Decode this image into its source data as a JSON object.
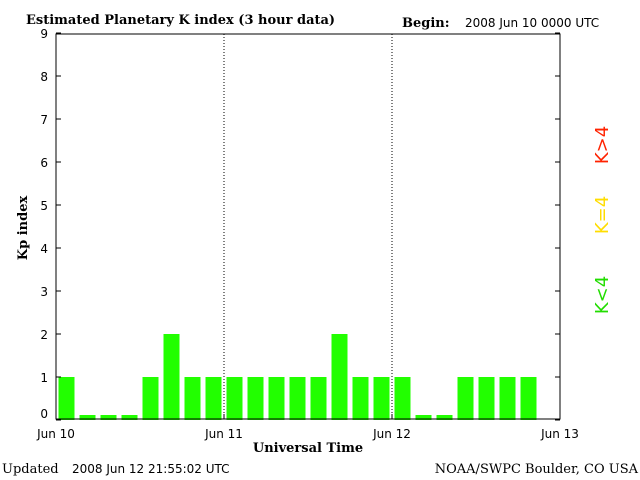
{
  "chart_data": {
    "type": "bar",
    "title": "Estimated Planetary K index (3 hour data)",
    "begin_label": "Begin:",
    "begin_value": "2008 Jun 10 0000 UTC",
    "xlabel": "Universal Time",
    "ylabel": "Kp index",
    "ylim": [
      0,
      9
    ],
    "yticks": [
      "0",
      "1",
      "2",
      "3",
      "4",
      "5",
      "6",
      "7",
      "8",
      "9"
    ],
    "xticks": [
      "Jun 10",
      "Jun 11",
      "Jun 12",
      "Jun 13"
    ],
    "interval_hours": 3,
    "values": [
      1,
      0,
      0,
      0,
      1,
      2,
      1,
      1,
      1,
      1,
      1,
      1,
      1,
      2,
      1,
      1,
      1,
      0,
      0,
      1,
      1,
      1,
      1
    ],
    "bar_color": "#22ff00",
    "legend": [
      {
        "label": "K<4",
        "color": "#22dd00"
      },
      {
        "label": "K=4",
        "color": "#ffdd00"
      },
      {
        "label": "K>4",
        "color": "#ff2200"
      }
    ],
    "grid": "dotted vertical lines at day boundaries"
  },
  "footer": {
    "updated_label": "Updated",
    "updated_value": "2008 Jun 12 21:55:02 UTC",
    "source": "NOAA/SWPC Boulder, CO USA"
  }
}
